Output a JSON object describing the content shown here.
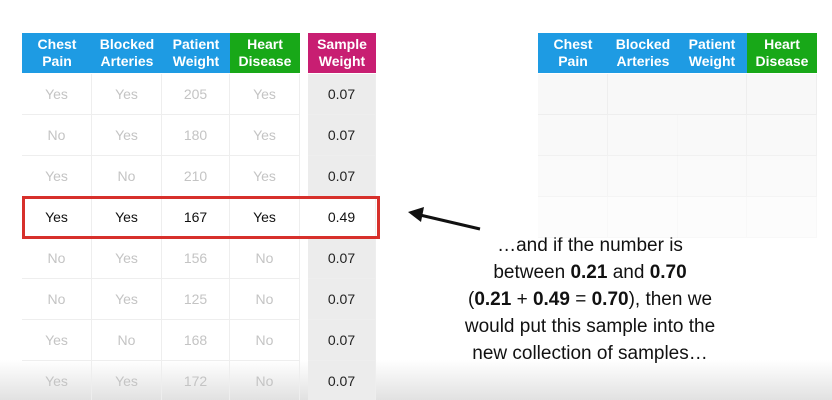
{
  "left_table": {
    "headers": [
      "Chest Pain",
      "Blocked Arteries",
      "Patient Weight",
      "Heart Disease",
      "Sample Weight"
    ],
    "rows": [
      [
        "Yes",
        "Yes",
        "205",
        "Yes",
        "0.07"
      ],
      [
        "No",
        "Yes",
        "180",
        "Yes",
        "0.07"
      ],
      [
        "Yes",
        "No",
        "210",
        "Yes",
        "0.07"
      ],
      [
        "Yes",
        "Yes",
        "167",
        "Yes",
        "0.49"
      ],
      [
        "No",
        "Yes",
        "156",
        "No",
        "0.07"
      ],
      [
        "No",
        "Yes",
        "125",
        "No",
        "0.07"
      ],
      [
        "Yes",
        "No",
        "168",
        "No",
        "0.07"
      ],
      [
        "Yes",
        "Yes",
        "172",
        "No",
        "0.07"
      ]
    ],
    "highlight_row": 3
  },
  "right_table": {
    "headers": [
      "Chest Pain",
      "Blocked Arteries",
      "Patient Weight",
      "Heart Disease"
    ]
  },
  "annotation": {
    "lines": [
      [
        {
          "text": "…and if the number is",
          "bold": false
        }
      ],
      [
        {
          "text": "between ",
          "bold": false
        },
        {
          "text": "0.21",
          "bold": true
        },
        {
          "text": " and ",
          "bold": false
        },
        {
          "text": "0.70",
          "bold": true
        }
      ],
      [
        {
          "text": "(",
          "bold": false
        },
        {
          "text": "0.21",
          "bold": true
        },
        {
          "text": " + ",
          "bold": false
        },
        {
          "text": "0.49",
          "bold": true
        },
        {
          "text": " = ",
          "bold": false
        },
        {
          "text": "0.70",
          "bold": true
        },
        {
          "text": "), then we",
          "bold": false
        }
      ],
      [
        {
          "text": "would put this sample into the",
          "bold": false
        }
      ],
      [
        {
          "text": "new collection of samples…",
          "bold": false
        }
      ]
    ]
  }
}
